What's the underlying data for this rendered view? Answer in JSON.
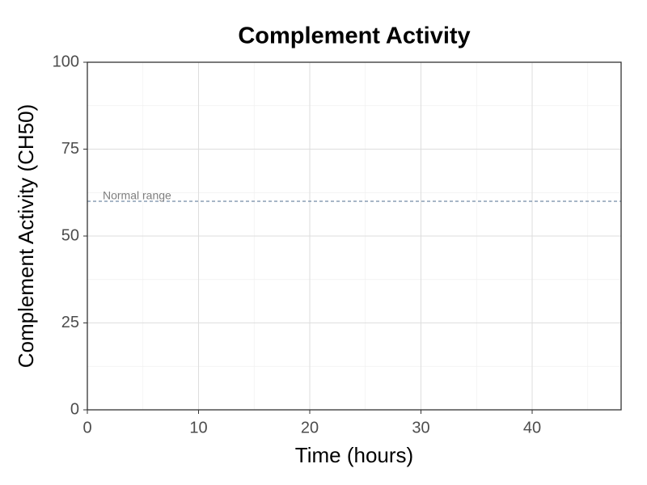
{
  "chart_data": {
    "type": "line",
    "title": "Complement Activity",
    "x_label": "Time (hours)",
    "y_label": "Complement Activity (CH50)",
    "series": [],
    "xlim": [
      0,
      48
    ],
    "ylim": [
      0,
      100
    ],
    "xticks": [
      0,
      10,
      20,
      30,
      40
    ],
    "yticks": [
      0,
      25,
      50,
      75,
      100
    ],
    "grid": true,
    "reference_lines": [
      {
        "value": 60,
        "label": "Normal range",
        "color": "#4f6d8f",
        "style": "dashed"
      }
    ]
  }
}
